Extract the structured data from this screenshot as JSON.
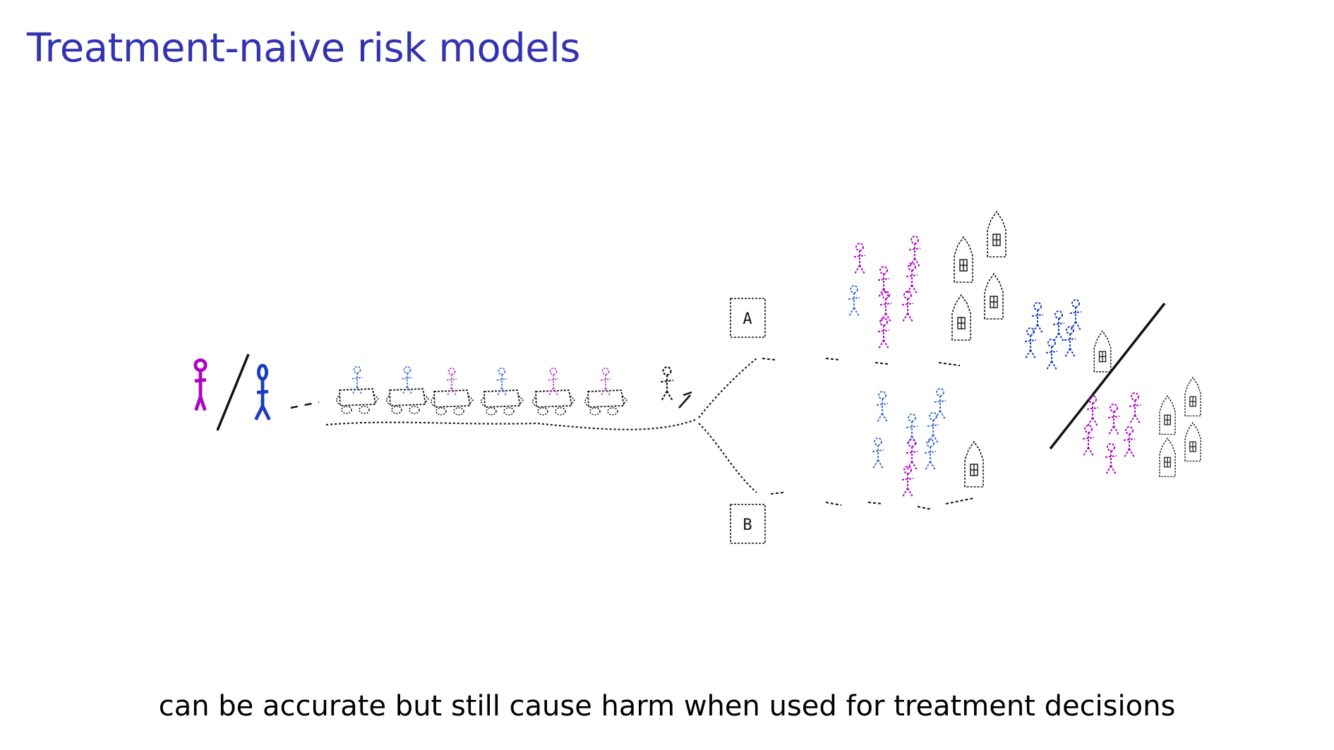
{
  "slide": {
    "title": "Treatment-naive risk models",
    "caption": "can be accurate but still cause harm when used for treatment decisions"
  },
  "diagram": {
    "branch_a_label": "A",
    "branch_b_label": "B",
    "colors": {
      "title": "#3333b2",
      "magenta_person": "#b000c8",
      "blue_person": "#1a3cc0",
      "ink": "#111111"
    },
    "icons": [
      "person-icon",
      "car-icon",
      "house-icon",
      "signpost-icon"
    ]
  }
}
